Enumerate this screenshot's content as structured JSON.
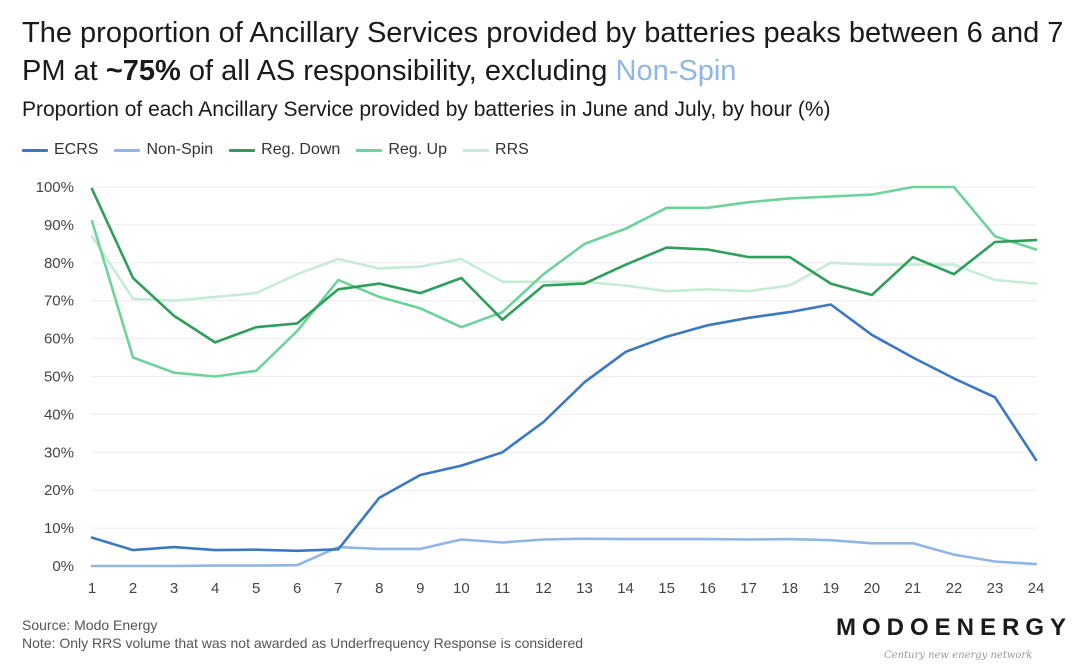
{
  "header": {
    "title_pre": "The proportion of Ancillary Services provided by batteries peaks between 6 and 7 PM at ",
    "title_bold": "~75%",
    "title_mid": " of all AS responsibility, excluding ",
    "title_highlight": "Non-Spin",
    "subtitle": "Proportion of each Ancillary Service provided by batteries in June and July, by hour (%)"
  },
  "chart_data": {
    "type": "line",
    "x": [
      1,
      2,
      3,
      4,
      5,
      6,
      7,
      8,
      9,
      10,
      11,
      12,
      13,
      14,
      15,
      16,
      17,
      18,
      19,
      20,
      21,
      22,
      23,
      24
    ],
    "xlim": [
      1,
      24
    ],
    "ylim": [
      0,
      100
    ],
    "yticks": [
      "0%",
      "10%",
      "20%",
      "30%",
      "40%",
      "50%",
      "60%",
      "70%",
      "80%",
      "90%",
      "100%"
    ],
    "grid": true,
    "legend_position": "top-left",
    "series": [
      {
        "name": "ECRS",
        "color": "#3a78c3",
        "values": [
          7.5,
          4.2,
          5,
          4.2,
          4.3,
          4,
          4.4,
          18,
          24,
          26.5,
          30,
          38,
          48.5,
          56.5,
          60.5,
          63.5,
          65.5,
          67,
          69,
          61,
          55,
          49.5,
          44.5,
          28
        ]
      },
      {
        "name": "Non-Spin",
        "color": "#8fb6e6",
        "values": [
          0,
          0,
          0,
          0.1,
          0.1,
          0.2,
          5,
          4.5,
          4.5,
          7,
          6.2,
          7,
          7.2,
          7.1,
          7.1,
          7.1,
          7,
          7.1,
          6.8,
          6,
          6,
          3,
          1.2,
          0.5
        ]
      },
      {
        "name": "Reg. Down",
        "color": "#2f9e5a",
        "values": [
          99.5,
          76,
          66,
          59,
          63,
          64,
          73,
          74.5,
          72,
          76,
          65,
          74,
          74.5,
          79.5,
          84,
          83.5,
          81.5,
          81.5,
          74.5,
          71.5,
          81.5,
          77,
          85.5,
          86
        ]
      },
      {
        "name": "Reg. Up",
        "color": "#6ed39a",
        "values": [
          91,
          55,
          51,
          50,
          51.5,
          62,
          75.5,
          71,
          68,
          63,
          67,
          77,
          85,
          89,
          94.5,
          94.5,
          96,
          97,
          97.5,
          98,
          100,
          100,
          87,
          83.5
        ]
      },
      {
        "name": "RRS",
        "color": "#c7ecd5",
        "values": [
          87,
          70.5,
          70,
          71,
          72,
          77,
          81,
          78.5,
          79,
          81,
          75,
          75,
          75,
          74,
          72.5,
          73,
          72.5,
          74,
          80,
          79.5,
          79.5,
          79.5,
          75.5,
          74.5
        ]
      }
    ]
  },
  "footer": {
    "source": "Source: Modo Energy",
    "note": "Note: Only RRS volume that was not awarded as Underfrequency Response is considered",
    "brand": "MODOENERGY",
    "watermark": "Century new energy network"
  }
}
